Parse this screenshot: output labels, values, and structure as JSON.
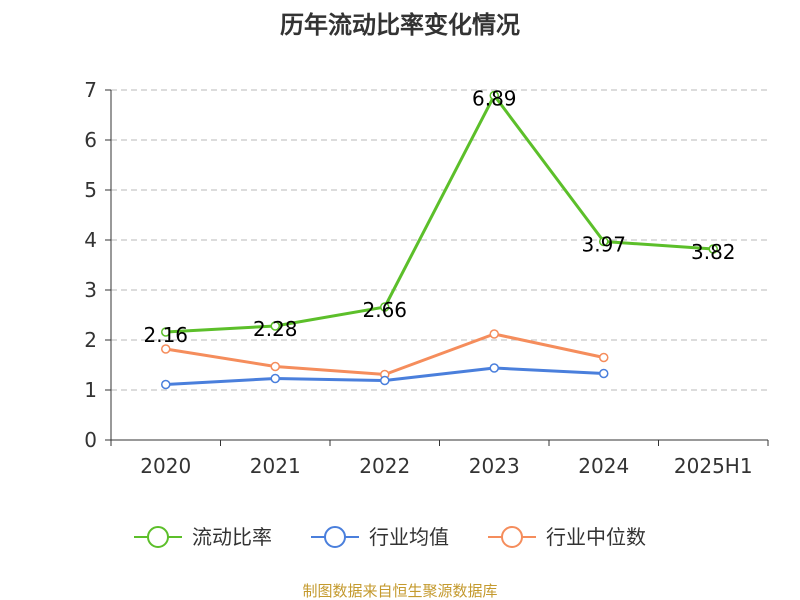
{
  "chart_data": {
    "type": "line",
    "title": "历年流动比率变化情况",
    "categories": [
      "2020",
      "2021",
      "2022",
      "2023",
      "2024",
      "2025H1"
    ],
    "ylim": [
      0,
      7
    ],
    "yticks": [
      "0",
      "1",
      "2",
      "3",
      "4",
      "5",
      "6",
      "7"
    ],
    "grid": true,
    "legend_position": "bottom",
    "series": [
      {
        "name": "流动比率",
        "color": "#5cbf2a",
        "values": [
          2.16,
          2.28,
          2.66,
          6.89,
          3.97,
          3.82
        ],
        "labels": [
          "2.16",
          "2.28",
          "2.66",
          "6.89",
          "3.97",
          "3.82"
        ]
      },
      {
        "name": "行业均值",
        "color": "#4a7fdc",
        "values": [
          1.11,
          1.23,
          1.19,
          1.44,
          1.33,
          null
        ]
      },
      {
        "name": "行业中位数",
        "color": "#f58d5c",
        "values": [
          1.82,
          1.47,
          1.31,
          2.12,
          1.65,
          null
        ]
      }
    ],
    "source": "制图数据来自恒生聚源数据库"
  }
}
